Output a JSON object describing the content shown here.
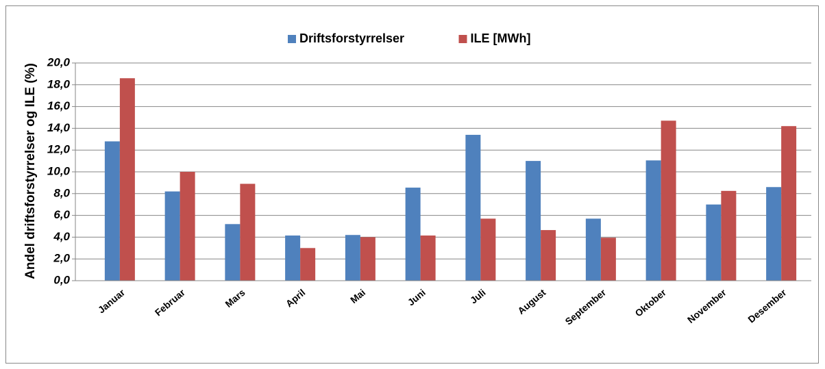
{
  "chart_data": {
    "type": "bar",
    "y_label": "Andel driftsforstyrrelser og ILE (%)",
    "categories": [
      "Januar",
      "Februar",
      "Mars",
      "April",
      "Mai",
      "Juni",
      "Juli",
      "August",
      "September",
      "Oktober",
      "November",
      "Desember"
    ],
    "series": [
      {
        "name": "Driftsforstyrrelser",
        "color": "#4f81bd",
        "values": [
          12.8,
          8.2,
          5.2,
          4.15,
          4.2,
          8.55,
          13.4,
          11.0,
          5.7,
          11.05,
          7.0,
          8.6
        ]
      },
      {
        "name": "ILE [MWh]",
        "color": "#c0504d",
        "values": [
          18.6,
          10.0,
          8.9,
          3.0,
          4.0,
          4.15,
          5.7,
          4.65,
          3.95,
          14.7,
          8.25,
          14.2
        ]
      }
    ],
    "ylim": [
      0,
      20
    ],
    "yticks": [
      {
        "value": 0,
        "label": "0,0"
      },
      {
        "value": 2,
        "label": "2,0"
      },
      {
        "value": 4,
        "label": "4,0"
      },
      {
        "value": 6,
        "label": "6,0"
      },
      {
        "value": 8,
        "label": "8,0"
      },
      {
        "value": 10,
        "label": "10,0"
      },
      {
        "value": 12,
        "label": "12,0"
      },
      {
        "value": 14,
        "label": "14,0"
      },
      {
        "value": 16,
        "label": "16,0"
      },
      {
        "value": 18,
        "label": "18,0"
      },
      {
        "value": 20,
        "label": "20,0"
      }
    ],
    "grid": true,
    "legend": "top"
  }
}
